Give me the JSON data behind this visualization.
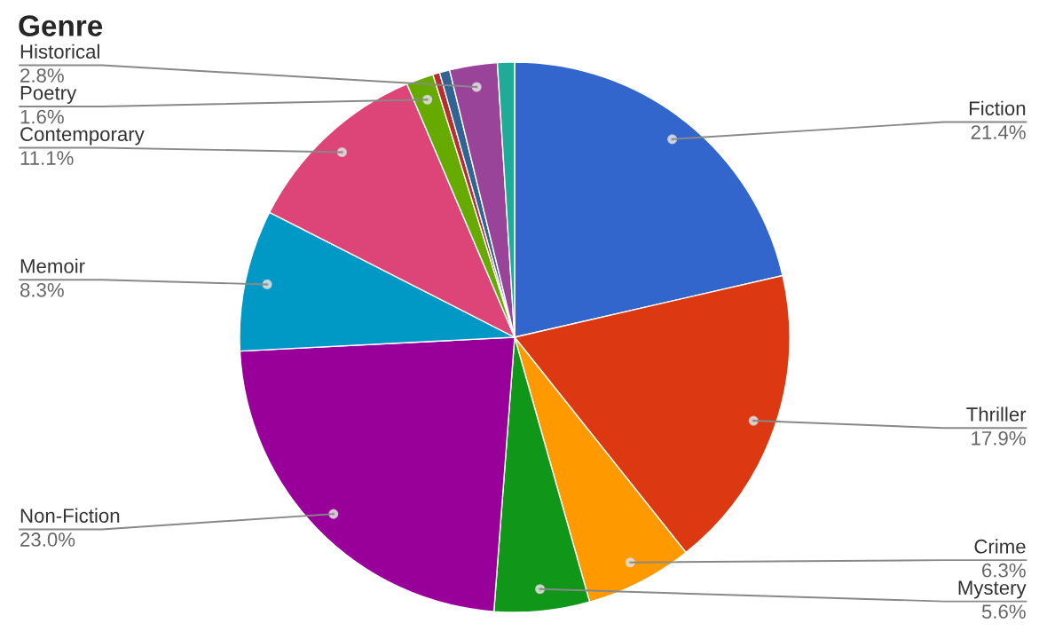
{
  "chart_data": {
    "type": "pie",
    "title": "Genre",
    "categories": [
      "Fiction",
      "Thriller",
      "Crime",
      "Mystery",
      "Non-Fiction",
      "Memoir",
      "Contemporary",
      "Poetry",
      null,
      null,
      "Historical",
      null
    ],
    "values": [
      21.4,
      17.9,
      6.3,
      5.6,
      23.0,
      8.3,
      11.1,
      1.6,
      0.4,
      0.6,
      2.8,
      1.0
    ],
    "colors": [
      "#3366cc",
      "#dc3912",
      "#ff9900",
      "#109618",
      "#990099",
      "#0099c6",
      "#dd4477",
      "#66aa00",
      "#b82e2e",
      "#316395",
      "#994499",
      "#22aa99"
    ],
    "value_labels": [
      "21.4%",
      "17.9%",
      "6.3%",
      "5.6%",
      "23.0%",
      "8.3%",
      "11.1%",
      "1.6%",
      null,
      null,
      "2.8%",
      null
    ],
    "legend": false
  }
}
